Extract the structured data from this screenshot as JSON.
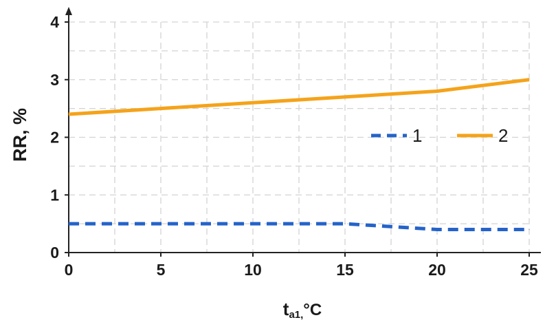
{
  "chart_data": {
    "type": "line",
    "x": [
      0,
      5,
      10,
      15,
      20,
      25
    ],
    "xlim": [
      0,
      25
    ],
    "ylim": [
      0,
      4
    ],
    "xticks": [
      0,
      5,
      10,
      15,
      20,
      25
    ],
    "yticks": [
      0,
      1,
      2,
      3,
      4
    ],
    "xtick_labels": [
      "0",
      "5",
      "10",
      "15",
      "20",
      "25"
    ],
    "ytick_labels": [
      "0",
      "1",
      "2",
      "3",
      "4"
    ],
    "ylabel": "RR, %",
    "xlabel": {
      "main": "t",
      "sub": "a1,",
      "unit": "°C"
    },
    "grid": true,
    "legend_position": "center-right",
    "series": [
      {
        "name": "1",
        "values": [
          0.5,
          0.5,
          0.5,
          0.5,
          0.4,
          0.4
        ],
        "color": "#2563c9",
        "style": "dashed"
      },
      {
        "name": "2",
        "values": [
          2.4,
          2.5,
          2.6,
          2.7,
          2.8,
          3.0
        ],
        "color": "#f5a31a",
        "style": "solid"
      }
    ]
  }
}
